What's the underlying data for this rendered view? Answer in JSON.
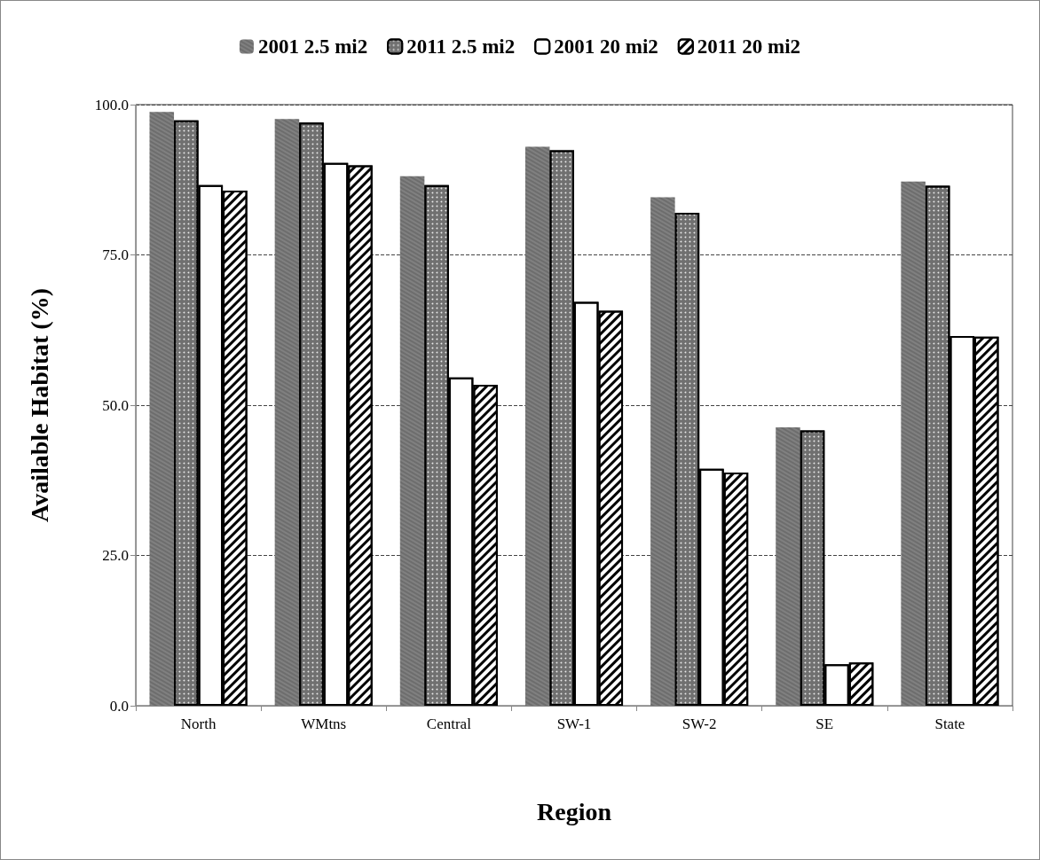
{
  "chart_data": {
    "type": "bar",
    "xlabel": "Region",
    "ylabel": "Available Habitat (%)",
    "categories": [
      "North",
      "WMtns",
      "Central",
      "SW-1",
      "SW-2",
      "SE",
      "State"
    ],
    "series": [
      {
        "name": "2001 2.5 mi2",
        "color": "#808080",
        "values": [
          98.8,
          97.6,
          88.1,
          93.0,
          84.6,
          46.3,
          87.2
        ]
      },
      {
        "name": "2011 2.5 mi2",
        "color": "#707070",
        "values": [
          97.4,
          97.0,
          86.6,
          92.4,
          82.0,
          45.8,
          86.5
        ]
      },
      {
        "name": "2001 20 mi2",
        "color": "#ffffff",
        "values": [
          86.6,
          90.3,
          54.6,
          67.2,
          39.4,
          6.9,
          61.5
        ]
      },
      {
        "name": "2011 20 mi2",
        "color": "#ffffff",
        "values": [
          85.7,
          89.9,
          53.4,
          65.7,
          38.8,
          7.2,
          61.4
        ]
      }
    ],
    "ylim": [
      0,
      100
    ],
    "yticks": [
      {
        "value": 0,
        "label": "0.0"
      },
      {
        "value": 25,
        "label": "25.0"
      },
      {
        "value": 50,
        "label": "50.0"
      },
      {
        "value": 75,
        "label": "75.0"
      },
      {
        "value": 100,
        "label": "100.0"
      }
    ],
    "grid": "y",
    "legend": "top"
  }
}
